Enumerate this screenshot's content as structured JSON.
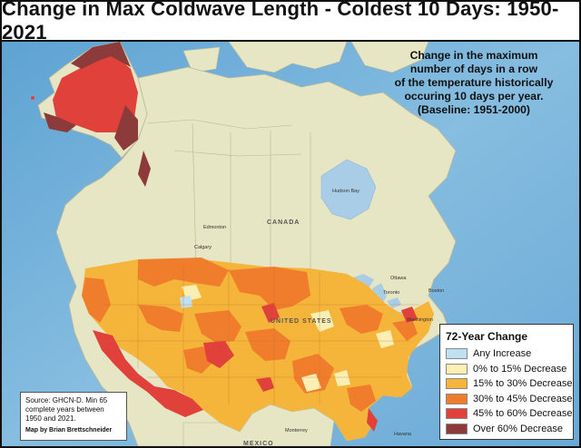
{
  "title": "Change in Max Coldwave Length - Coldest 10 Days: 1950-2021",
  "subtitle_lines": [
    "Change in the maximum",
    "number of days in a row",
    "of the temperature historically",
    "occuring 10 days per year.",
    "(Baseline: 1951-2000)"
  ],
  "legend": {
    "title": "72-Year Change",
    "items": [
      {
        "label": "Any Increase",
        "color": "#bfe0f2"
      },
      {
        "label": "0% to 15% Decrease",
        "color": "#fcefb4"
      },
      {
        "label": "15% to 30% Decrease",
        "color": "#f5b53a"
      },
      {
        "label": "30% to 45% Decrease",
        "color": "#ef7d2c"
      },
      {
        "label": "45% to 60% Decrease",
        "color": "#e0413a"
      },
      {
        "label": "Over 60% Decrease",
        "color": "#8c3a3a"
      }
    ]
  },
  "source": {
    "lines": [
      "Source: GHCN-D. Min 65",
      "complete years between",
      "1950 and 2021."
    ],
    "credit": "Map by Brian Brettschneider"
  },
  "labels": {
    "canada": "CANADA",
    "united_states": "UNITED STATES",
    "mexico": "MEXICO",
    "hudson_bay": "Hudson Bay",
    "edmonton": "Edmonton",
    "calgary": "Calgary",
    "ottawa": "Ottawa",
    "toronto": "Toronto",
    "boston": "Boston",
    "washington": "Washington",
    "monterrey": "Monterrey",
    "havana": "Havana"
  },
  "colors": {
    "ocean": "#7fb6d8",
    "land": "#e6e6c4",
    "water_body": "#a9cde6"
  }
}
